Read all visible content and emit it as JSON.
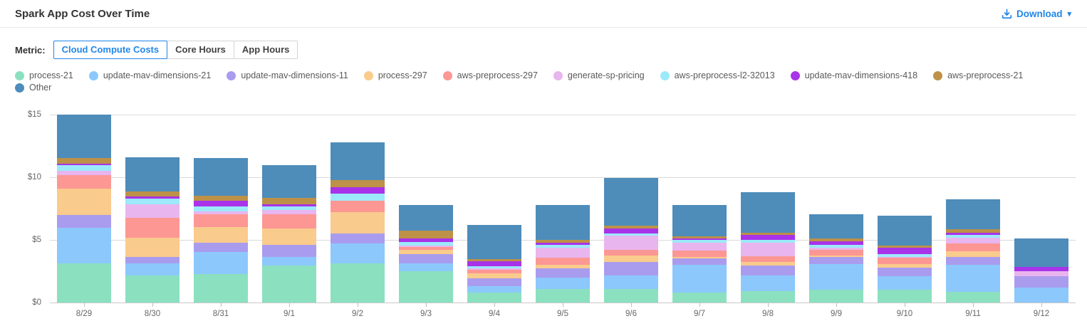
{
  "header": {
    "title": "Spark App Cost Over Time",
    "download_label": "Download",
    "download_caret": "▾"
  },
  "controls": {
    "metric_label": "Metric:",
    "options": [
      "Cloud Compute Costs",
      "Core Hours",
      "App Hours"
    ],
    "selected": "Cloud Compute Costs"
  },
  "colors": {
    "accent_blue": "#2187e8",
    "axis_text": "#666666",
    "gridline": "#dadada",
    "axis_line": "#c9c9c9",
    "legend_text": "#595959"
  },
  "chart_data": {
    "type": "bar",
    "stacked": true,
    "title": "Spark App Cost Over Time",
    "unit": "USD",
    "grid": true,
    "legend_position": "top",
    "ylim": [
      0,
      15
    ],
    "y_ticks": [
      {
        "value": 0,
        "label": "$0"
      },
      {
        "value": 5,
        "label": "$5"
      },
      {
        "value": 10,
        "label": "$10"
      },
      {
        "value": 15,
        "label": "$15"
      }
    ],
    "categories": [
      "8/29",
      "8/30",
      "8/31",
      "9/1",
      "9/2",
      "9/3",
      "9/4",
      "9/5",
      "9/6",
      "9/7",
      "9/8",
      "9/9",
      "9/10",
      "9/11",
      "9/12"
    ],
    "series": [
      {
        "name": "process-21",
        "color": "#8be0c0",
        "values": [
          3.1,
          2.18,
          2.29,
          2.94,
          3.13,
          2.48,
          0.81,
          1.1,
          1.1,
          0.81,
          0.91,
          1.0,
          1.0,
          0.85,
          0
        ]
      },
      {
        "name": "update-mav-dimensions-21",
        "color": "#8cc8fc",
        "values": [
          2.87,
          0.94,
          1.74,
          0.72,
          1.61,
          0.65,
          0.48,
          0.89,
          1.08,
          2.18,
          1.23,
          2.09,
          1.1,
          2.14,
          1.19
        ]
      },
      {
        "name": "update-mav-dimensions-11",
        "color": "#a99cee",
        "values": [
          1.0,
          0.54,
          0.72,
          0.94,
          0.77,
          0.72,
          0.66,
          0.72,
          1.06,
          0.52,
          0.8,
          0.57,
          0.7,
          0.67,
          0.9
        ]
      },
      {
        "name": "process-297",
        "color": "#f9cb8c",
        "values": [
          2.12,
          1.52,
          1.27,
          1.33,
          1.71,
          0.34,
          0.38,
          0.28,
          0.51,
          0.15,
          0.3,
          0.09,
          0.29,
          0.41,
          0
        ]
      },
      {
        "name": "aws-preprocess-297",
        "color": "#fc9793",
        "values": [
          1.06,
          1.56,
          1.04,
          1.13,
          0.92,
          0.26,
          0.28,
          0.57,
          0.47,
          0.47,
          0.45,
          0.47,
          0.47,
          0.63,
          0
        ]
      },
      {
        "name": "generate-sp-pricing",
        "color": "#e9b5ee",
        "values": [
          0.38,
          1.09,
          0.23,
          0.34,
          0,
          0.08,
          0.1,
          0.82,
          1.14,
          0.66,
          1.1,
          0.13,
          0.1,
          0.47,
          0.39
        ]
      },
      {
        "name": "aws-preprocess-l2-32013",
        "color": "#9ce9fa",
        "values": [
          0.42,
          0.49,
          0.4,
          0.29,
          0.54,
          0.3,
          0.19,
          0.22,
          0.15,
          0.19,
          0.19,
          0.25,
          0.22,
          0.23,
          0
        ]
      },
      {
        "name": "update-mav-dimensions-418",
        "color": "#a833e8",
        "values": [
          0.15,
          0.15,
          0.42,
          0.17,
          0.53,
          0.27,
          0.41,
          0.19,
          0.38,
          0.15,
          0.42,
          0.28,
          0.5,
          0.19,
          0.36
        ]
      },
      {
        "name": "aws-preprocess-21",
        "color": "#bd9148",
        "values": [
          0.45,
          0.42,
          0.41,
          0.47,
          0.54,
          0.62,
          0.19,
          0.23,
          0.23,
          0.14,
          0.19,
          0.23,
          0.18,
          0.24,
          0
        ]
      },
      {
        "name": "Other",
        "color": "#4e8cba",
        "values": [
          3.45,
          2.68,
          3.03,
          2.62,
          3.02,
          2.09,
          2.71,
          2.76,
          3.82,
          2.51,
          3.22,
          1.95,
          2.35,
          2.41,
          2.29
        ]
      }
    ]
  }
}
